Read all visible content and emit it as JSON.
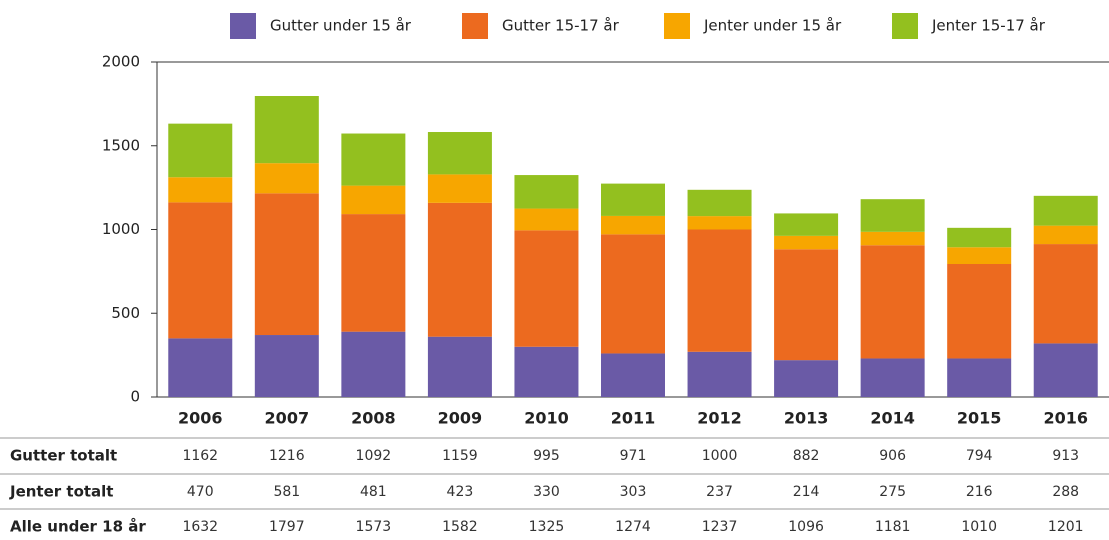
{
  "chart_data": {
    "type": "stacked_bar",
    "categories": [
      "2006",
      "2007",
      "2008",
      "2009",
      "2010",
      "2011",
      "2012",
      "2013",
      "2014",
      "2015",
      "2016"
    ],
    "series": [
      {
        "name": "Gutter under 15 år",
        "color": "#6a5aa6",
        "values": [
          350,
          370,
          390,
          360,
          300,
          260,
          270,
          220,
          230,
          230,
          320
        ]
      },
      {
        "name": "Gutter 15-17 år",
        "color": "#ec6a1f",
        "values": [
          812,
          846,
          702,
          799,
          695,
          711,
          730,
          662,
          676,
          564,
          593
        ]
      },
      {
        "name": "Jenter under 15 år",
        "color": "#f7a600",
        "values": [
          150,
          180,
          170,
          170,
          130,
          110,
          80,
          80,
          80,
          100,
          110
        ]
      },
      {
        "name": "Jenter 15-17 år",
        "color": "#93c01f",
        "values": [
          320,
          401,
          311,
          253,
          200,
          193,
          157,
          134,
          195,
          116,
          178
        ]
      }
    ],
    "ylim": [
      0,
      2000
    ],
    "yticks": [
      0,
      500,
      1000,
      1500,
      2000
    ]
  },
  "table": {
    "rows": [
      {
        "label": "Gutter totalt",
        "values": [
          1162,
          1216,
          1092,
          1159,
          995,
          971,
          1000,
          882,
          906,
          794,
          913
        ]
      },
      {
        "label": "Jenter totalt",
        "values": [
          470,
          581,
          481,
          423,
          330,
          303,
          237,
          214,
          275,
          216,
          288
        ]
      },
      {
        "label": "Alle under 18 år",
        "values": [
          1632,
          1797,
          1573,
          1582,
          1325,
          1274,
          1237,
          1096,
          1181,
          1010,
          1201
        ]
      }
    ]
  }
}
